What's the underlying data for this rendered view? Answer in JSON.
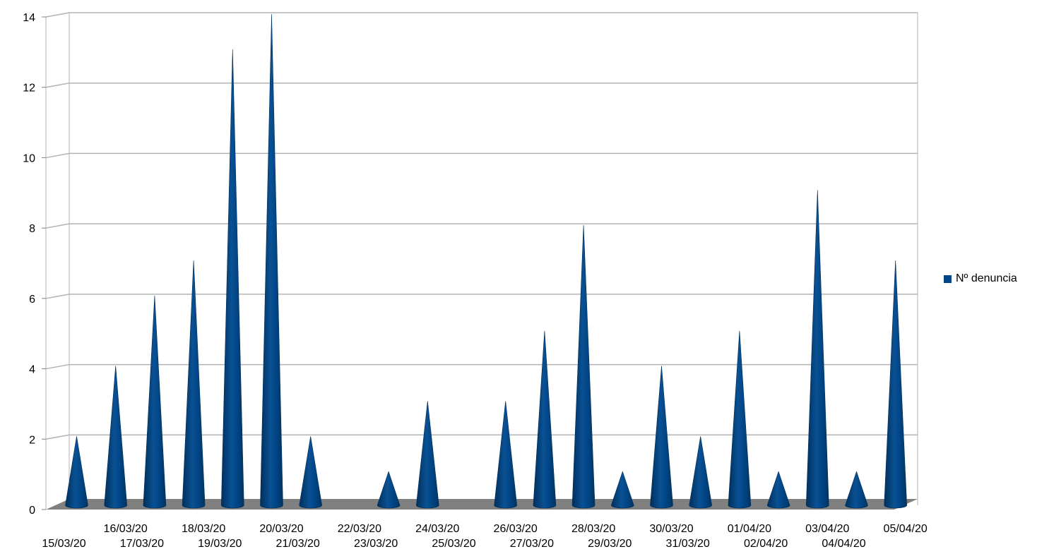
{
  "chart_data": {
    "type": "bar",
    "bar_shape": "cone-3d",
    "categories": [
      "15/03/20",
      "16/03/20",
      "17/03/20",
      "18/03/20",
      "19/03/20",
      "20/03/20",
      "21/03/20",
      "22/03/20",
      "23/03/20",
      "24/03/20",
      "25/03/20",
      "26/03/20",
      "27/03/20",
      "28/03/20",
      "29/03/20",
      "30/03/20",
      "31/03/20",
      "01/04/20",
      "02/04/20",
      "03/04/20",
      "04/04/20",
      "05/04/20"
    ],
    "series": [
      {
        "name": "Nº denuncia",
        "values": [
          2,
          4,
          6,
          7,
          13,
          14,
          2,
          0,
          1,
          3,
          0,
          3,
          5,
          8,
          1,
          4,
          2,
          5,
          1,
          9,
          1,
          7
        ]
      }
    ],
    "yticks": [
      0,
      2,
      4,
      6,
      8,
      10,
      12,
      14
    ],
    "ylim": [
      0,
      14
    ],
    "grid": true,
    "legend_position": "right",
    "colors": {
      "series": "#004586",
      "series_dark": "#002f5c",
      "series_light": "#2a6fb0",
      "grid": "#b3b3b3",
      "floor": "#808080",
      "wall": "#b3b3b3"
    }
  }
}
